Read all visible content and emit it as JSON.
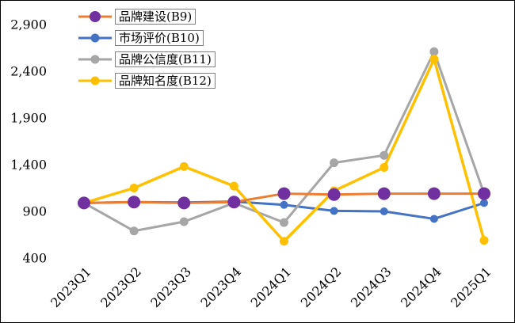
{
  "chart_data": {
    "type": "line",
    "title": "",
    "xlabel": "",
    "ylabel": "",
    "categories": [
      "2023Q1",
      "2023Q2",
      "2023Q3",
      "2023Q4",
      "2024Q1",
      "2024Q2",
      "2024Q3",
      "2024Q4",
      "2025Q1"
    ],
    "series": [
      {
        "name": "品牌建设(B9)",
        "line_color": "#ED7D31",
        "marker_color": "#7030A0",
        "marker_size": 8,
        "values": [
          990,
          1000,
          990,
          1000,
          1090,
          1080,
          1090,
          1090,
          1090
        ]
      },
      {
        "name": "市场评价(B10)",
        "line_color": "#4472C4",
        "marker_color": "#4472C4",
        "marker_size": 5,
        "values": [
          990,
          1000,
          995,
          1005,
          970,
          905,
          900,
          820,
          990
        ]
      },
      {
        "name": "品牌公信度(B11)",
        "line_color": "#A6A6A6",
        "marker_color": "#A6A6A6",
        "marker_size": 5.5,
        "values": [
          990,
          690,
          790,
          990,
          780,
          1420,
          1500,
          2610,
          1090
        ]
      },
      {
        "name": "品牌知名度(B12)",
        "line_color": "#FFC000",
        "marker_color": "#FFC000",
        "marker_size": 5.5,
        "values": [
          990,
          1150,
          1380,
          1170,
          580,
          1120,
          1370,
          2530,
          590
        ]
      }
    ],
    "ylim": [
      400,
      2900
    ],
    "yticks": [
      400,
      900,
      1400,
      1900,
      2400,
      2900
    ],
    "ytick_labels": [
      "400",
      "900",
      "1,400",
      "1,900",
      "2,400",
      "2,900"
    ],
    "grid": false,
    "legend_position": "top-left",
    "axis_text_color": "#000000"
  }
}
